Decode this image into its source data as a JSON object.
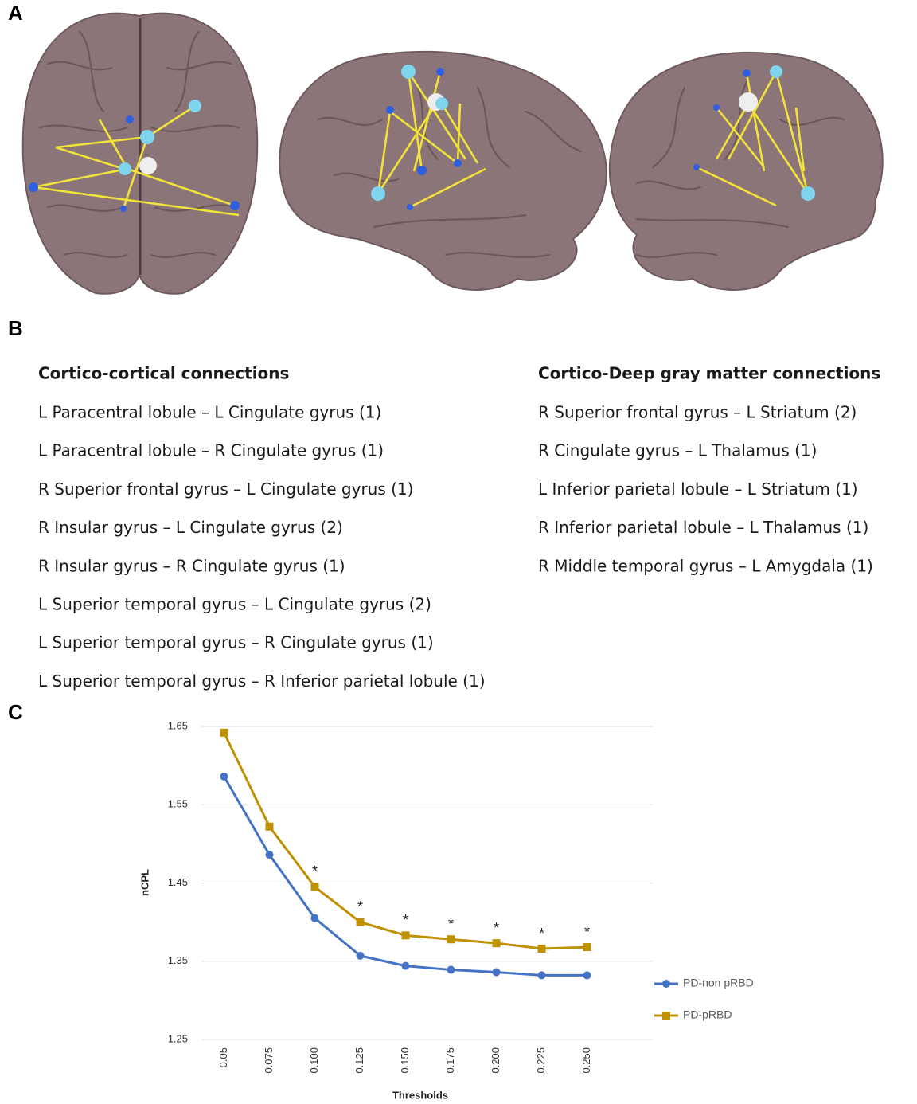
{
  "panels": {
    "a": "A",
    "b": "B",
    "c": "C"
  },
  "connections": {
    "cortico_cortical": {
      "title": "Cortico-cortical connections",
      "items": [
        "L Paracentral lobule – L Cingulate gyrus (1)",
        "L Paracentral lobule – R Cingulate gyrus (1)",
        "R Superior frontal gyrus – L Cingulate gyrus (1)",
        "R Insular gyrus – L Cingulate gyrus (2)",
        "R Insular gyrus – R Cingulate gyrus (1)",
        "L Superior temporal gyrus – L Cingulate gyrus (2)",
        "L Superior temporal gyrus – R Cingulate gyrus (1)",
        "L Superior temporal gyrus –  R Inferior parietal lobule (1)"
      ]
    },
    "cortico_deep": {
      "title": "Cortico-Deep gray matter connections",
      "items": [
        "R Superior frontal gyrus – L Striatum (2)",
        "R Cingulate gyrus – L Thalamus (1)",
        "L Inferior parietal lobule  – L Striatum (1)",
        "R Inferior parietal lobule – L Thalamus (1)",
        "R Middle temporal gyrus – L Amygdala (1)"
      ]
    }
  },
  "chart_data": {
    "type": "line",
    "x_label": "Thresholds",
    "y_label": "nCPL",
    "categories": [
      "0.05",
      "0.075",
      "0.100",
      "0.125",
      "0.150",
      "0.175",
      "0.200",
      "0.225",
      "0.250"
    ],
    "series": [
      {
        "name": "PD-non pRBD",
        "color": "#4472c4",
        "marker": "circle",
        "values": [
          1.586,
          1.486,
          1.405,
          1.357,
          1.344,
          1.339,
          1.336,
          1.332,
          1.332
        ]
      },
      {
        "name": "PD-pRBD",
        "color": "#bf9000",
        "marker": "square",
        "values": [
          1.642,
          1.522,
          1.445,
          1.4,
          1.383,
          1.378,
          1.373,
          1.366,
          1.368
        ]
      }
    ],
    "ylim": [
      1.25,
      1.65
    ],
    "yticks": [
      1.25,
      1.35,
      1.45,
      1.55,
      1.65
    ],
    "grid": true,
    "legend": "right",
    "annotations": [
      {
        "x": "0.100",
        "text": "*"
      },
      {
        "x": "0.125",
        "text": "*"
      },
      {
        "x": "0.150",
        "text": "*"
      },
      {
        "x": "0.175",
        "text": "*"
      },
      {
        "x": "0.200",
        "text": "*"
      },
      {
        "x": "0.225",
        "text": "*"
      },
      {
        "x": "0.250",
        "text": "*"
      }
    ]
  }
}
